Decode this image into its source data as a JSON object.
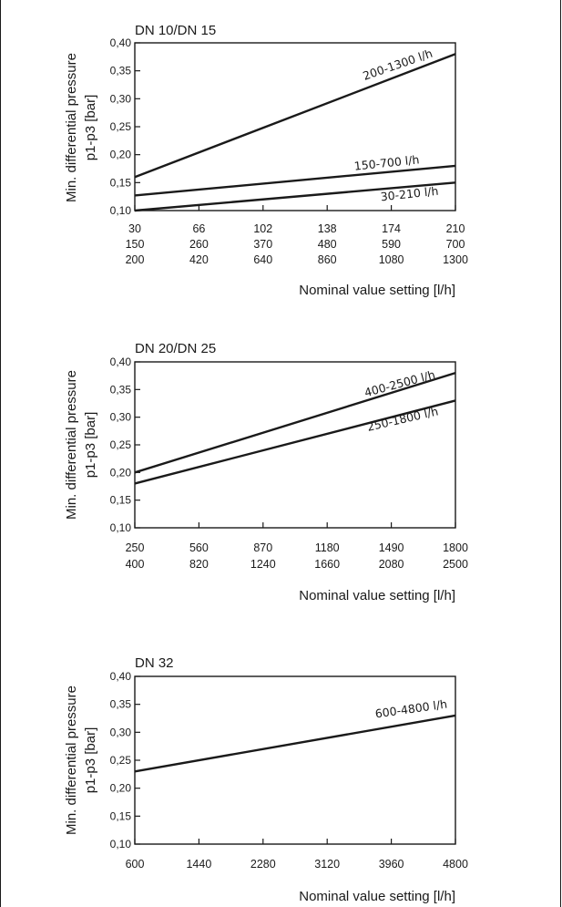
{
  "chart_data": [
    {
      "type": "line",
      "title": "DN 10/DN 15",
      "xlabel": "Nominal value setting [l/h]",
      "ylabel": [
        "Min. differential pressure",
        "p1-p3 [bar]"
      ],
      "ylim": [
        0.1,
        0.4
      ],
      "yticks": [
        "0,10",
        "0,15",
        "0,20",
        "0,25",
        "0,30",
        "0,35",
        "0,40"
      ],
      "xlim": [
        0,
        5
      ],
      "xtick_rows": [
        [
          "30",
          "66",
          "102",
          "138",
          "174",
          "210"
        ],
        [
          "150",
          "260",
          "370",
          "480",
          "590",
          "700"
        ],
        [
          "200",
          "420",
          "640",
          "860",
          "1080",
          "1300"
        ]
      ],
      "series": [
        {
          "name": "200-1300 l/h",
          "x": [
            0,
            5
          ],
          "y": [
            0.16,
            0.38
          ]
        },
        {
          "name": "150-700 l/h",
          "x": [
            0,
            5
          ],
          "y": [
            0.127,
            0.18
          ]
        },
        {
          "name": "30-210 l/h",
          "x": [
            0,
            5
          ],
          "y": [
            0.1,
            0.15
          ]
        }
      ],
      "grid": false
    },
    {
      "type": "line",
      "title": "DN 20/DN 25",
      "xlabel": "Nominal value setting [l/h]",
      "ylabel": [
        "Min. differential pressure",
        "p1-p3 [bar]"
      ],
      "ylim": [
        0.1,
        0.4
      ],
      "yticks": [
        "0,10",
        "0,15",
        "0,20",
        "0,25",
        "0,30",
        "0,35",
        "0,40"
      ],
      "xlim": [
        0,
        5
      ],
      "xtick_rows": [
        [
          "250",
          "560",
          "870",
          "1180",
          "1490",
          "1800"
        ],
        [
          "400",
          "820",
          "1240",
          "1660",
          "2080",
          "2500"
        ]
      ],
      "series": [
        {
          "name": "400-2500 l/h",
          "x": [
            0,
            5
          ],
          "y": [
            0.2,
            0.38
          ]
        },
        {
          "name": "250-1800 l/h",
          "x": [
            0,
            5
          ],
          "y": [
            0.18,
            0.33
          ]
        }
      ],
      "grid": false
    },
    {
      "type": "line",
      "title": "DN 32",
      "xlabel": "Nominal value setting [l/h]",
      "ylabel": [
        "Min. differential pressure",
        "p1-p3 [bar]"
      ],
      "ylim": [
        0.1,
        0.4
      ],
      "yticks": [
        "0,10",
        "0,15",
        "0,20",
        "0,25",
        "0,30",
        "0,35",
        "0,40"
      ],
      "xlim": [
        0,
        5
      ],
      "xtick_rows": [
        [
          "600",
          "1440",
          "2280",
          "3120",
          "3960",
          "4800"
        ]
      ],
      "series": [
        {
          "name": "600-4800 l/h",
          "x": [
            0,
            5
          ],
          "y": [
            0.23,
            0.33
          ]
        }
      ],
      "grid": false
    }
  ],
  "colors": {
    "line": "#1a1a1a",
    "background": "#ffffff"
  }
}
